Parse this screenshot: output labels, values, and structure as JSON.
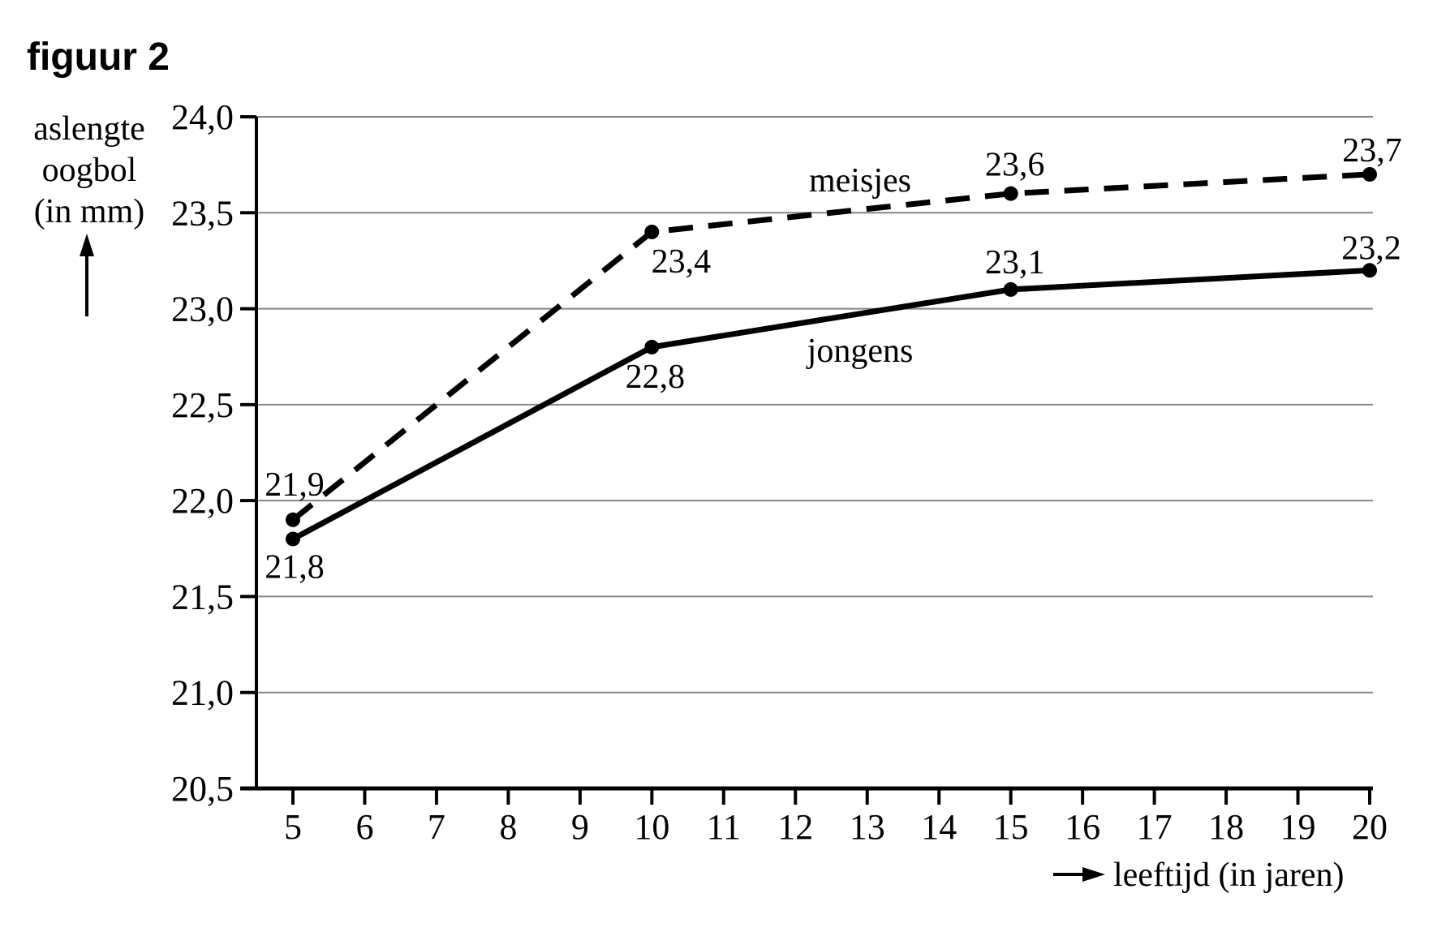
{
  "figure_label": "figuur 2",
  "chart_data": {
    "type": "line",
    "title": "figuur 2",
    "ylabel": "aslengte oogbol (in mm)",
    "ylabel_lines": [
      "aslengte",
      "oogbol",
      "(in mm)"
    ],
    "xlabel": "leeftijd (in jaren)",
    "x": [
      5,
      10,
      15,
      20
    ],
    "x_ticks": [
      5,
      6,
      7,
      8,
      9,
      10,
      11,
      12,
      13,
      14,
      15,
      16,
      17,
      18,
      19,
      20
    ],
    "y_ticks": [
      20.5,
      21.0,
      21.5,
      22.0,
      22.5,
      23.0,
      23.5,
      24.0
    ],
    "xlim": [
      5,
      20
    ],
    "ylim": [
      20.5,
      24.0
    ],
    "grid": "horizontal",
    "legend_position": "inline-labels",
    "decimal_separator": ",",
    "series": [
      {
        "name": "meisjes",
        "line_style": "dashed",
        "values": [
          21.9,
          23.4,
          23.6,
          23.7
        ]
      },
      {
        "name": "jongens",
        "line_style": "solid",
        "values": [
          21.8,
          22.8,
          23.1,
          23.2
        ]
      }
    ],
    "colors": {
      "line": "#000000",
      "grid": "#858585",
      "text": "#000000",
      "background": "#ffffff"
    }
  }
}
